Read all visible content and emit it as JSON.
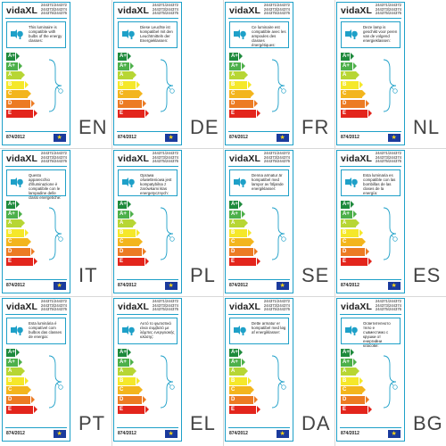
{
  "brand": "vidaXL",
  "product_codes": "244371/244372\n244373/244374\n244375/244376",
  "regulation": "874/2012",
  "classes": [
    "A++",
    "A+",
    "A",
    "B",
    "C",
    "D",
    "E"
  ],
  "class_colors": [
    "#1e8a3c",
    "#4db04a",
    "#b7d634",
    "#f5e82a",
    "#f3b51d",
    "#ec7b23",
    "#e3251c"
  ],
  "accent_color": "#1ea0c8",
  "labels": [
    {
      "lang": "EN",
      "text": "This luminaire is compatible with bulbs of the energy classes:"
    },
    {
      "lang": "DE",
      "text": "Diese Leuchte ist kompatibel mit den Leuchtmitteln der Energieklassen:"
    },
    {
      "lang": "FR",
      "text": "Ce luminaire est compatible avec les ampoules des classes énergétiques:"
    },
    {
      "lang": "NL",
      "text": "Deze lamp is geschikt voor peren van de volgend energieklassen:"
    },
    {
      "lang": "IT",
      "text": "Questo apparecchio d'illuminazione è compatibile con le lampadine delle classi energetiche:"
    },
    {
      "lang": "PL",
      "text": "Oprawa oświetleniowa jest kompatybilna z żarówkami klas energetycznych:"
    },
    {
      "lang": "SE",
      "text": "Denna armatur är kompatibel med lampor av följande energiklasser:"
    },
    {
      "lang": "ES",
      "text": "Esta luminaria es compatible con las bombillas de las clases de la energía:"
    },
    {
      "lang": "PT",
      "text": "Esta luminária é compatível com bulbos das classes de energia:"
    },
    {
      "lang": "EL",
      "text": "Αυτό το φωτιστικό είναι συμβατό με λάμπες ενεργειακής κλάσης:"
    },
    {
      "lang": "DA",
      "text": "Dette armatur er kompatibel med løg af energiklasser:"
    },
    {
      "lang": "BG",
      "text": "Осветителното тяло е съвместимо с крушки от енергийни класове:"
    }
  ]
}
